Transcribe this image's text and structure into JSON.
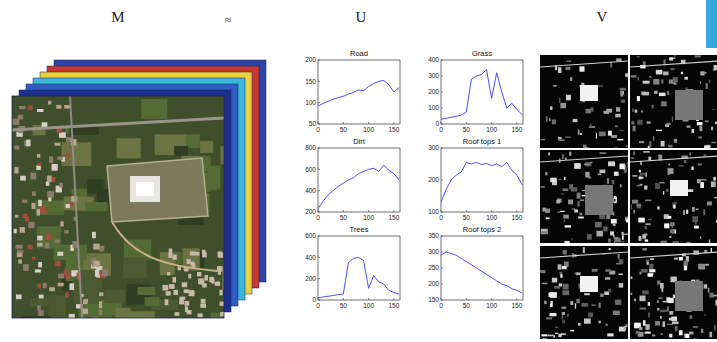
{
  "header": {
    "m": "M",
    "approx": "≈",
    "u": "U",
    "v": "V"
  },
  "chart_data": [
    {
      "type": "line",
      "title": "Road",
      "color": "#3b3bf0",
      "x": [
        0,
        10,
        20,
        30,
        40,
        50,
        60,
        70,
        80,
        90,
        100,
        110,
        120,
        130,
        140,
        150,
        160
      ],
      "values": [
        92,
        98,
        103,
        108,
        112,
        115,
        120,
        124,
        130,
        128,
        138,
        145,
        150,
        152,
        142,
        125,
        135
      ],
      "xlim": [
        0,
        162
      ],
      "xticks": [
        0,
        50,
        100,
        150
      ],
      "ylim": [
        50,
        200
      ],
      "yticks": [
        50,
        100,
        150,
        200
      ]
    },
    {
      "type": "line",
      "title": "Grass",
      "color": "#3b3bf0",
      "x": [
        0,
        10,
        20,
        30,
        40,
        50,
        60,
        70,
        80,
        90,
        100,
        110,
        120,
        130,
        140,
        150,
        160
      ],
      "values": [
        30,
        35,
        42,
        48,
        55,
        75,
        280,
        300,
        310,
        340,
        160,
        320,
        200,
        100,
        130,
        90,
        60
      ],
      "xlim": [
        0,
        162
      ],
      "xticks": [
        0,
        50,
        100,
        150
      ],
      "ylim": [
        0,
        400
      ],
      "yticks": [
        0,
        100,
        200,
        300,
        400
      ]
    },
    {
      "type": "line",
      "title": "Dirt",
      "color": "#3b3bf0",
      "x": [
        0,
        10,
        20,
        30,
        40,
        50,
        60,
        70,
        80,
        90,
        100,
        110,
        120,
        130,
        140,
        150,
        160
      ],
      "values": [
        230,
        300,
        360,
        400,
        440,
        470,
        500,
        520,
        560,
        580,
        600,
        610,
        580,
        640,
        590,
        560,
        500
      ],
      "xlim": [
        0,
        162
      ],
      "xticks": [
        0,
        50,
        100,
        150
      ],
      "ylim": [
        200,
        800
      ],
      "yticks": [
        200,
        400,
        600,
        800
      ]
    },
    {
      "type": "line",
      "title": "Roof tops 1",
      "color": "#3b3bf0",
      "x": [
        0,
        10,
        20,
        30,
        40,
        50,
        60,
        70,
        80,
        90,
        100,
        110,
        120,
        130,
        140,
        150,
        160
      ],
      "values": [
        130,
        170,
        200,
        215,
        225,
        255,
        250,
        255,
        248,
        252,
        245,
        250,
        242,
        255,
        230,
        215,
        185
      ],
      "xlim": [
        0,
        162
      ],
      "xticks": [
        0,
        50,
        100,
        150
      ],
      "ylim": [
        100,
        300
      ],
      "yticks": [
        100,
        200,
        300
      ]
    },
    {
      "type": "line",
      "title": "Trees",
      "color": "#3b3bf0",
      "x": [
        0,
        10,
        20,
        30,
        40,
        50,
        60,
        70,
        80,
        90,
        100,
        110,
        120,
        130,
        140,
        150,
        160
      ],
      "values": [
        20,
        28,
        35,
        42,
        50,
        55,
        350,
        390,
        400,
        370,
        110,
        230,
        170,
        150,
        90,
        70,
        55
      ],
      "xlim": [
        0,
        162
      ],
      "xticks": [
        0,
        50,
        100,
        150
      ],
      "ylim": [
        0,
        600
      ],
      "yticks": [
        0,
        200,
        400,
        600
      ]
    },
    {
      "type": "line",
      "title": "Roof tops 2",
      "color": "#3b3bf0",
      "x": [
        0,
        10,
        20,
        30,
        40,
        50,
        60,
        70,
        80,
        90,
        100,
        110,
        120,
        130,
        140,
        150,
        160
      ],
      "values": [
        290,
        300,
        295,
        290,
        280,
        270,
        260,
        250,
        240,
        230,
        220,
        210,
        200,
        195,
        185,
        180,
        172
      ],
      "xlim": [
        0,
        162
      ],
      "xticks": [
        0,
        50,
        100,
        150
      ],
      "ylim": [
        150,
        350
      ],
      "yticks": [
        150,
        200,
        250,
        300,
        350
      ]
    }
  ]
}
